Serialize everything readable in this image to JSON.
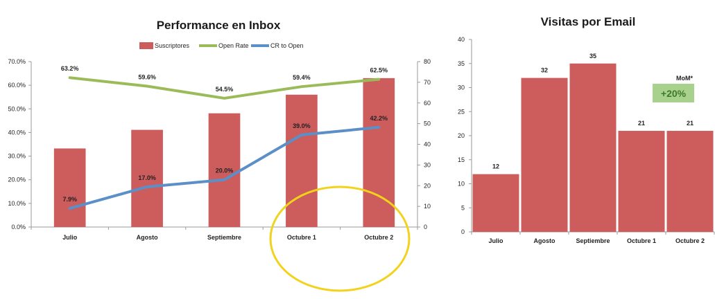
{
  "chart_data": [
    {
      "type": "bar",
      "title": "Performance en Inbox",
      "categories": [
        "Julio",
        "Agosto",
        "Septiembre",
        "Octubre 1",
        "Octubre 2"
      ],
      "legend_position": "top",
      "series": [
        {
          "name": "Suscriptores",
          "type": "bar",
          "axis": "right",
          "color": "#cd5c5c",
          "values": [
            38,
            47,
            55,
            64,
            72
          ]
        },
        {
          "name": "Open Rate",
          "type": "line",
          "axis": "left",
          "color": "#9bbb59",
          "values": [
            63.2,
            59.6,
            54.5,
            59.4,
            62.5
          ],
          "labels": [
            "63.2%",
            "59.6%",
            "54.5%",
            "59.4%",
            "62.5%"
          ]
        },
        {
          "name": "CR to Open",
          "type": "line",
          "axis": "left",
          "color": "#5b8fc7",
          "values": [
            7.9,
            17.0,
            20.0,
            39.0,
            42.2
          ],
          "labels": [
            "7.9%",
            "17.0%",
            "20.0%",
            "39.0%",
            "42.2%"
          ]
        }
      ],
      "y_left": {
        "ylim": [
          0,
          70
        ],
        "ticks": [
          "0.0%",
          "10.0%",
          "20.0%",
          "30.0%",
          "40.0%",
          "50.0%",
          "60.0%",
          "70.0%"
        ]
      },
      "y_right": {
        "ylim": [
          0,
          80
        ],
        "ticks": [
          "0",
          "10",
          "20",
          "30",
          "40",
          "50",
          "60",
          "70",
          "80"
        ]
      },
      "grid": false
    },
    {
      "type": "bar",
      "title": "Visitas por Email",
      "categories": [
        "Julio",
        "Agosto",
        "Septiembre",
        "Octubre 1",
        "Octubre 2"
      ],
      "series": [
        {
          "name": "",
          "color": "#cd5c5c",
          "values": [
            12,
            32,
            35,
            21,
            21
          ]
        }
      ],
      "ylim": [
        0,
        40
      ],
      "yticks": [
        "0",
        "5",
        "10",
        "15",
        "20",
        "25",
        "30",
        "35",
        "40"
      ],
      "grid": false,
      "annotation": {
        "label": "MoM*",
        "value": "+20%",
        "color": "#a9d18e"
      }
    }
  ]
}
